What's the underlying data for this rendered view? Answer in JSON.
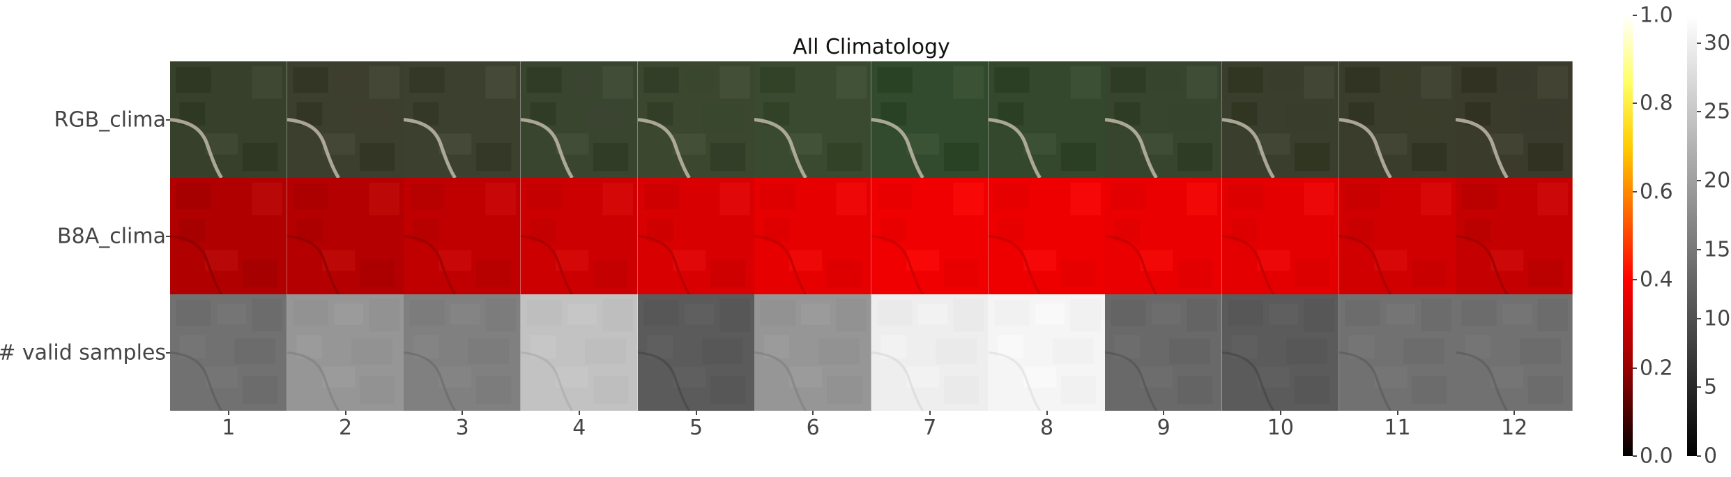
{
  "chart_data": {
    "type": "heatmap",
    "title": "All Climatology",
    "categories": [
      "1",
      "2",
      "3",
      "4",
      "5",
      "6",
      "7",
      "8",
      "9",
      "10",
      "11",
      "12"
    ],
    "rows": [
      "RGB_clima",
      "B8A_clima",
      "# valid samples"
    ],
    "series": [
      {
        "name": "# valid samples",
        "values": [
          14,
          19,
          16,
          25,
          11,
          19,
          31,
          32,
          13,
          11,
          14,
          14
        ]
      }
    ],
    "colorbars": [
      {
        "colormap": "hot",
        "range": [
          0.0,
          1.0
        ],
        "ticks": [
          "0.0",
          "0.2",
          "0.4",
          "0.6",
          "0.8",
          "1.0"
        ]
      },
      {
        "colormap": "gray",
        "range": [
          0,
          32
        ],
        "ticks": [
          "0",
          "5",
          "10",
          "15",
          "20",
          "25",
          "30"
        ]
      }
    ],
    "grid": false
  },
  "colors": {
    "rgb_base": [
      "#37402b",
      "#3d3f2e",
      "#3c412f",
      "#3a4530",
      "#3b472f",
      "#3a4a30",
      "#324a2d",
      "#34482d",
      "#38452e",
      "#393f2c",
      "#3a3d2b",
      "#3b3b2c"
    ],
    "b8a_base": [
      "#b00000",
      "#b40000",
      "#c00000",
      "#cc0000",
      "#d80000",
      "#e60000",
      "#f00000",
      "#ee0000",
      "#ea0000",
      "#e40000",
      "#d00000",
      "#c40000"
    ]
  }
}
